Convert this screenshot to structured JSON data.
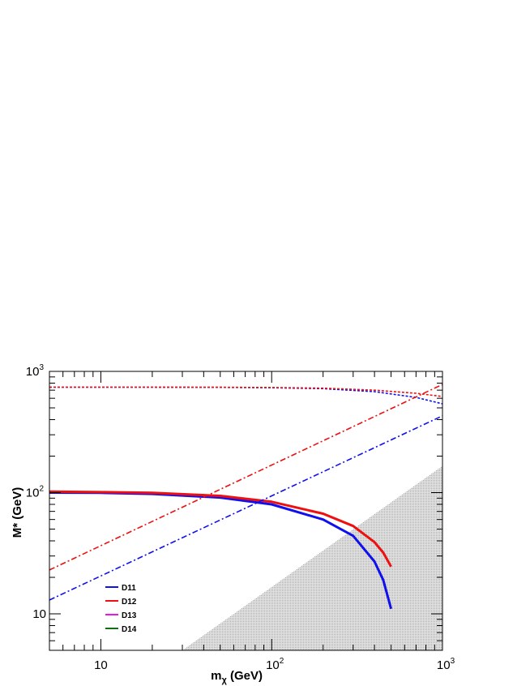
{
  "chart_data": {
    "type": "line",
    "title": "",
    "xlabel": "m",
    "xlabel_sub": "χ",
    "xlabel_unit": " (GeV)",
    "ylabel": "M* (GeV)",
    "x_scale": "log",
    "y_scale": "log",
    "xlim": [
      5,
      1000
    ],
    "ylim": [
      5,
      1000
    ],
    "grid": false,
    "legend_placement": "bottom-left",
    "x_tick_labels": [
      {
        "value": 10,
        "base": "10",
        "exp": ""
      },
      {
        "value": 100,
        "base": "10",
        "exp": "2"
      },
      {
        "value": 1000,
        "base": "10",
        "exp": "3"
      }
    ],
    "y_tick_labels": [
      {
        "value": 10,
        "base": "10",
        "exp": ""
      },
      {
        "value": 100,
        "base": "10",
        "exp": "2"
      },
      {
        "value": 1000,
        "base": "10",
        "exp": "3"
      }
    ],
    "legend": [
      {
        "name": "D11",
        "color": "#1010ee"
      },
      {
        "name": "D12",
        "color": "#ee1010"
      },
      {
        "name": "D13",
        "color": "#ee10ee"
      },
      {
        "name": "D14",
        "color": "#107010"
      }
    ],
    "series": [
      {
        "name": "D11",
        "style": "solid",
        "color": "#1010ee",
        "x": [
          5,
          10,
          20,
          50,
          100,
          200,
          300,
          400,
          450,
          500
        ],
        "y": [
          100,
          99.5,
          97.5,
          91,
          80,
          60,
          44,
          27,
          19,
          11
        ]
      },
      {
        "name": "D12",
        "style": "solid",
        "color": "#ee1010",
        "x": [
          5,
          10,
          20,
          50,
          100,
          200,
          300,
          400,
          450,
          500
        ],
        "y": [
          102,
          101,
          99.5,
          94,
          84,
          67,
          53,
          39,
          32,
          24.5
        ]
      },
      {
        "name": "D11",
        "style": "dashed",
        "color": "#1010ee",
        "x": [
          5,
          20,
          50,
          100,
          200,
          400,
          700,
          1000
        ],
        "y": [
          740,
          740,
          738,
          733,
          720,
          680,
          610,
          540
        ]
      },
      {
        "name": "D12",
        "style": "dashed",
        "color": "#ee1010",
        "x": [
          5,
          20,
          50,
          100,
          200,
          400,
          700,
          1000
        ],
        "y": [
          740,
          740,
          739,
          736,
          727,
          700,
          660,
          620
        ]
      },
      {
        "name": "D11",
        "style": "dashdot",
        "color": "#1010ee",
        "x": [
          5,
          1000
        ],
        "y": [
          13,
          430
        ]
      },
      {
        "name": "D12",
        "style": "dashdot",
        "color": "#ee1010",
        "x": [
          5,
          1000
        ],
        "y": [
          23,
          780
        ]
      }
    ],
    "excluded_region": {
      "fill": "#c8c8c8",
      "boundary_x": [
        30,
        1000
      ],
      "boundary_y": [
        5,
        166
      ]
    }
  }
}
